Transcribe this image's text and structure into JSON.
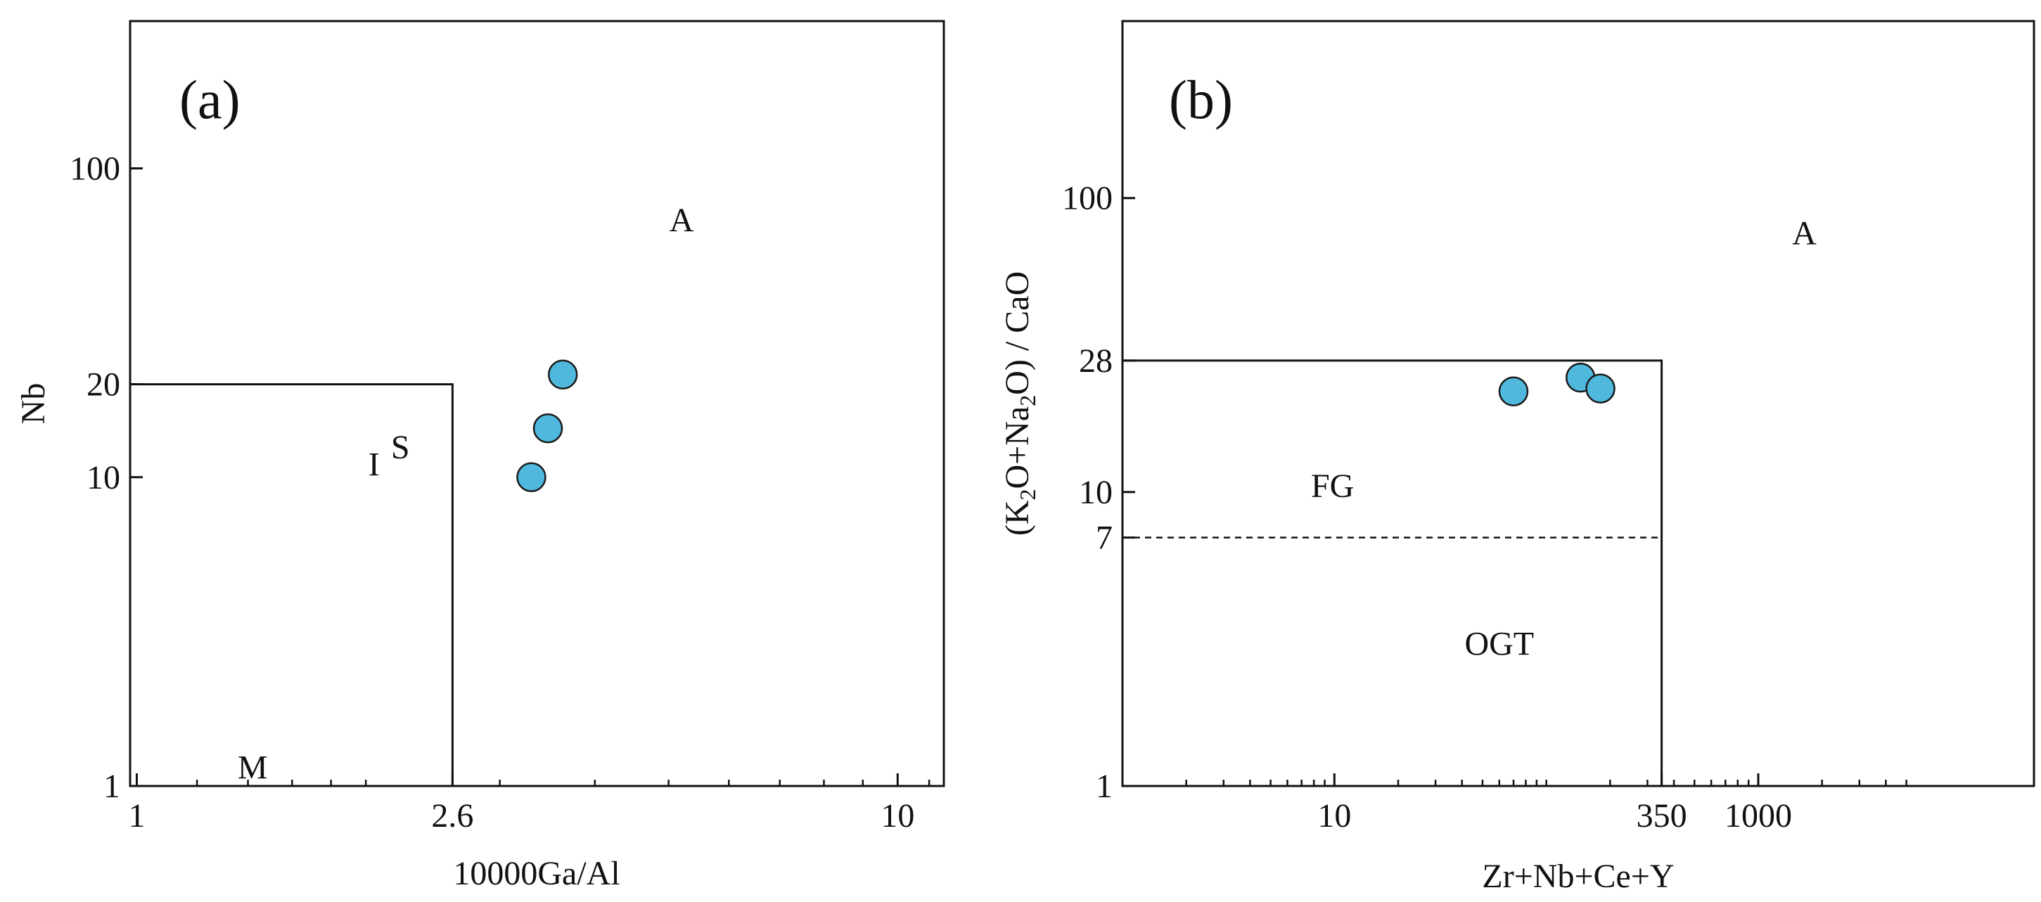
{
  "colors": {
    "frame": "#111111",
    "point_fill": "#4FB8DC",
    "point_stroke": "#1A1A1A"
  },
  "chart_data": [
    {
      "panel": "(a)",
      "type": "scatter",
      "title": "",
      "xlabel": "10000Ga/Al",
      "ylabel": "Nb",
      "x_scale": "log",
      "y_scale": "log",
      "xlim": [
        0.98,
        11.5
      ],
      "ylim": [
        1,
        300
      ],
      "xticks": [
        {
          "v": 1,
          "label": "1"
        },
        {
          "v": 2.6,
          "label": "2.6"
        },
        {
          "v": 10,
          "label": "10"
        }
      ],
      "yticks": [
        {
          "v": 1,
          "label": "1"
        },
        {
          "v": 10,
          "label": "10"
        },
        {
          "v": 20,
          "label": "20"
        },
        {
          "v": 100,
          "label": "100"
        }
      ],
      "minor_xticks": [
        1.2,
        1.4,
        1.6,
        1.8,
        2,
        3,
        4,
        5,
        6,
        7,
        8,
        9,
        11
      ],
      "boundaries": [
        {
          "style": "solid",
          "points": [
            [
              0.98,
              20
            ],
            [
              2.6,
              20
            ],
            [
              2.6,
              1
            ]
          ]
        }
      ],
      "fields": [
        {
          "text": "A",
          "x": 5.2,
          "y": 68
        },
        {
          "text": "I",
          "x": 2.05,
          "y": 11
        },
        {
          "text": "S",
          "x": 2.22,
          "y": 12.5
        },
        {
          "text": "M",
          "x": 1.42,
          "y": 1.15
        }
      ],
      "points": [
        {
          "x": 3.3,
          "y": 10
        },
        {
          "x": 3.47,
          "y": 14.4
        },
        {
          "x": 3.63,
          "y": 21.5
        }
      ]
    },
    {
      "panel": "(b)",
      "type": "scatter",
      "title": "",
      "xlabel": "Zr+Nb+Ce+Y",
      "ylabel_parts": [
        "(K",
        "2",
        "O+Na",
        "2",
        "O) / CaO"
      ],
      "x_scale": "log",
      "y_scale": "log",
      "xlim": [
        1,
        20000
      ],
      "ylim": [
        1,
        400
      ],
      "xticks": [
        {
          "v": 10,
          "label": "10"
        },
        {
          "v": 350,
          "label": "350"
        },
        {
          "v": 1000,
          "label": "1000"
        }
      ],
      "yticks": [
        {
          "v": 1,
          "label": "1"
        },
        {
          "v": 7,
          "label": "7"
        },
        {
          "v": 10,
          "label": "10"
        },
        {
          "v": 28,
          "label": "28"
        },
        {
          "v": 100,
          "label": "100"
        }
      ],
      "minor_xticks": [
        2,
        3,
        4,
        5,
        6,
        7,
        8,
        9,
        20,
        30,
        40,
        50,
        60,
        70,
        80,
        90,
        100,
        200,
        300,
        400,
        500,
        600,
        700,
        800,
        900,
        2000,
        3000,
        4000,
        5000
      ],
      "boundaries": [
        {
          "style": "solid",
          "points": [
            [
              1,
              28
            ],
            [
              350,
              28
            ],
            [
              350,
              1
            ]
          ]
        },
        {
          "style": "dashed",
          "points": [
            [
              1,
              7
            ],
            [
              350,
              7
            ]
          ]
        }
      ],
      "fields": [
        {
          "text": "A",
          "x": 1650,
          "y": 76
        },
        {
          "text": "FG",
          "x": 9.8,
          "y": 10.5
        },
        {
          "text": "OGT",
          "x": 60,
          "y": 3.05
        }
      ],
      "points": [
        {
          "x": 70,
          "y": 22
        },
        {
          "x": 145,
          "y": 24.5
        },
        {
          "x": 180,
          "y": 22.5
        }
      ]
    }
  ]
}
